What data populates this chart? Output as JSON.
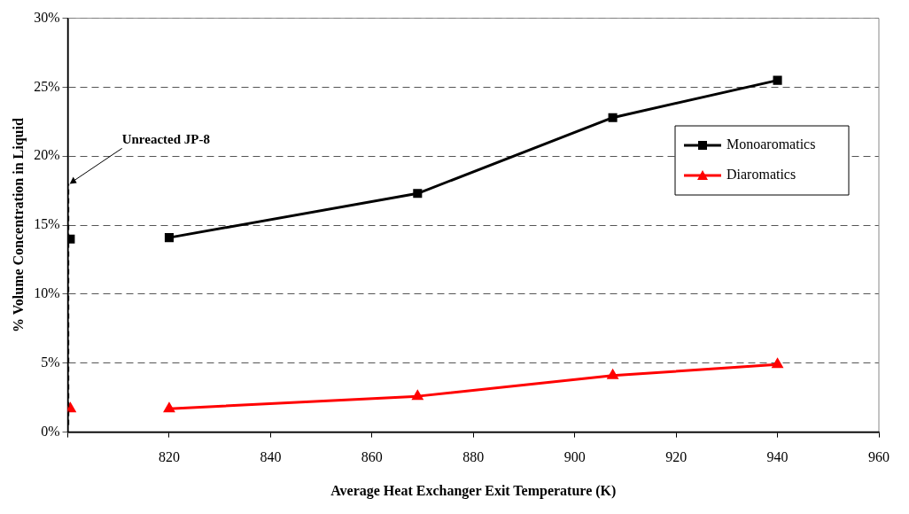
{
  "chart_data": {
    "type": "line",
    "xlabel": "Average Heat Exchanger Exit Temperature (K)",
    "ylabel": "% Volume Concentration in Liquid",
    "xlim": [
      800,
      960
    ],
    "xticks": [
      {
        "value": 800,
        "label": null
      },
      820,
      840,
      860,
      880,
      900,
      920,
      940,
      960
    ],
    "ylim": [
      0,
      30
    ],
    "yticks": [
      {
        "value": 0,
        "label": "0%"
      },
      {
        "value": 5,
        "label": "5%"
      },
      {
        "value": 10,
        "label": "10%"
      },
      {
        "value": 15,
        "label": "15%"
      },
      {
        "value": 20,
        "label": "20%"
      },
      {
        "value": 25,
        "label": "25%"
      },
      {
        "value": 30,
        "label": "30%"
      }
    ],
    "grid": "y",
    "legend": "top right",
    "marker": "square",
    "series": [
      {
        "name": "Monoaromatics",
        "color": "#000000",
        "x": [
          820,
          869,
          907.5,
          940
        ],
        "values": [
          14.1,
          17.3,
          22.8,
          25.5
        ]
      },
      {
        "name": "Diaromatics",
        "color": "#ff0000",
        "marker": "triangle",
        "x": [
          820,
          869,
          907.5,
          940
        ],
        "values": [
          1.7,
          2.6,
          4.1,
          4.9
        ]
      },
      {
        "type": "scatter",
        "color": "#000000",
        "x": [
          800.5
        ],
        "values": [
          14.0
        ]
      },
      {
        "type": "scatter",
        "color": "#ff0000",
        "marker": "triangle",
        "x": [
          800.5
        ],
        "values": [
          1.7
        ]
      }
    ],
    "ref_lines": [
      {
        "axis": "x",
        "value": 800.2,
        "label": "Unreacted JP-8",
        "line_style": "dashed",
        "color": "#000000"
      }
    ]
  }
}
